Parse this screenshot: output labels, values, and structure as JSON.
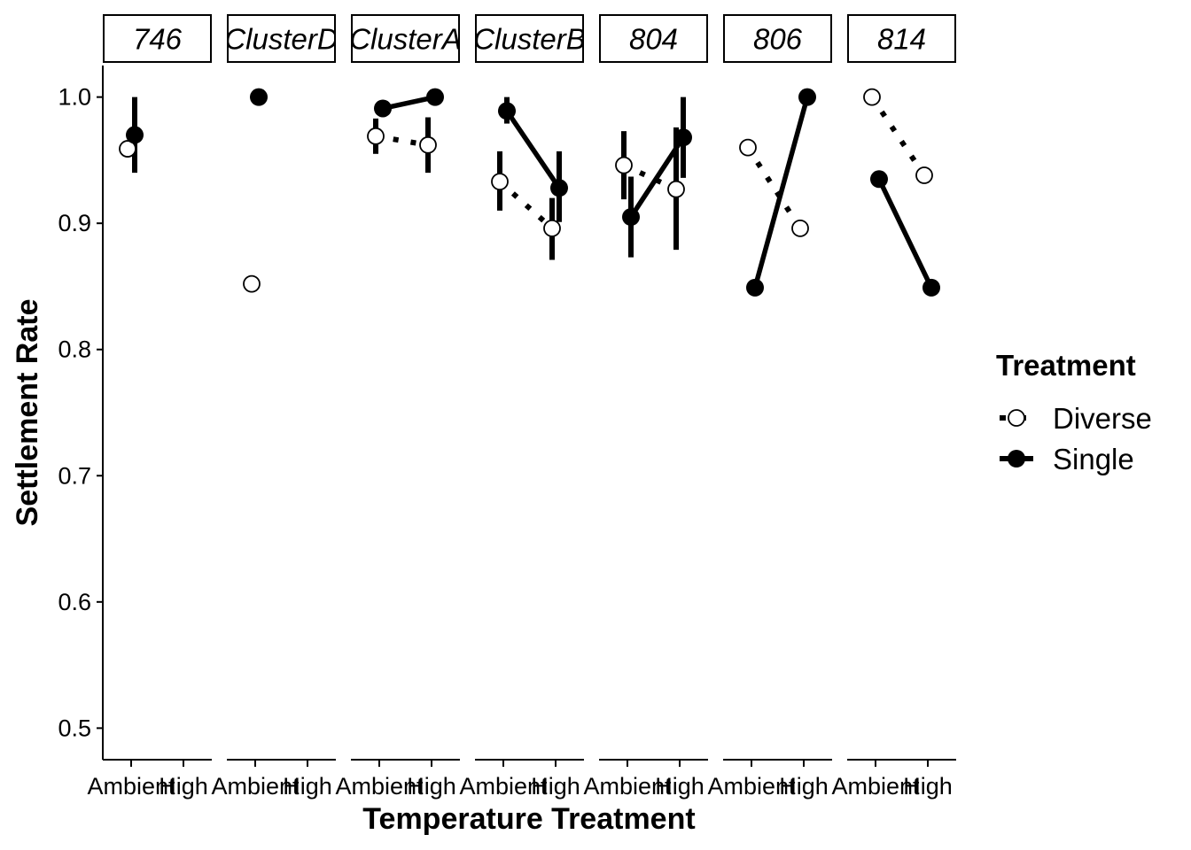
{
  "chart_data": {
    "type": "line",
    "xlabel": "Temperature Treatment",
    "ylabel": "Settlement Rate",
    "ylim": [
      0.475,
      1.025
    ],
    "yticks": [
      "0.5",
      "0.6",
      "0.7",
      "0.8",
      "0.9",
      "1.0"
    ],
    "categories": [
      "Ambient",
      "High"
    ],
    "legend": {
      "title": "Treatment",
      "position": "right"
    },
    "series_styles": {
      "Diverse": {
        "marker": "open-circle",
        "line": "dotted"
      },
      "Single": {
        "marker": "filled-circle",
        "line": "solid"
      }
    },
    "facets": [
      {
        "label": "746",
        "series": [
          {
            "name": "Diverse",
            "points": [
              {
                "x": "Ambient",
                "y": 0.959,
                "lo": 0.959,
                "hi": 0.959
              }
            ]
          },
          {
            "name": "Single",
            "points": [
              {
                "x": "Ambient",
                "y": 0.97,
                "lo": 0.94,
                "hi": 1.0
              }
            ]
          }
        ]
      },
      {
        "label": "ClusterD",
        "series": [
          {
            "name": "Diverse",
            "points": [
              {
                "x": "Ambient",
                "y": 0.852,
                "lo": 0.852,
                "hi": 0.852
              }
            ]
          },
          {
            "name": "Single",
            "points": [
              {
                "x": "Ambient",
                "y": 1.0,
                "lo": 1.0,
                "hi": 1.0
              }
            ]
          }
        ]
      },
      {
        "label": "ClusterA",
        "series": [
          {
            "name": "Diverse",
            "points": [
              {
                "x": "Ambient",
                "y": 0.969,
                "lo": 0.955,
                "hi": 0.983
              },
              {
                "x": "High",
                "y": 0.962,
                "lo": 0.94,
                "hi": 0.984
              }
            ]
          },
          {
            "name": "Single",
            "points": [
              {
                "x": "Ambient",
                "y": 0.991,
                "lo": 0.991,
                "hi": 0.991
              },
              {
                "x": "High",
                "y": 1.0,
                "lo": 1.0,
                "hi": 1.0
              }
            ]
          }
        ]
      },
      {
        "label": "ClusterB",
        "series": [
          {
            "name": "Diverse",
            "points": [
              {
                "x": "Ambient",
                "y": 0.933,
                "lo": 0.91,
                "hi": 0.957
              },
              {
                "x": "High",
                "y": 0.896,
                "lo": 0.871,
                "hi": 0.92
              }
            ]
          },
          {
            "name": "Single",
            "points": [
              {
                "x": "Ambient",
                "y": 0.989,
                "lo": 0.979,
                "hi": 1.0
              },
              {
                "x": "High",
                "y": 0.928,
                "lo": 0.901,
                "hi": 0.957
              }
            ]
          }
        ]
      },
      {
        "label": "804",
        "series": [
          {
            "name": "Diverse",
            "points": [
              {
                "x": "Ambient",
                "y": 0.946,
                "lo": 0.919,
                "hi": 0.973
              },
              {
                "x": "High",
                "y": 0.927,
                "lo": 0.879,
                "hi": 0.976
              }
            ]
          },
          {
            "name": "Single",
            "points": [
              {
                "x": "Ambient",
                "y": 0.905,
                "lo": 0.873,
                "hi": 0.937
              },
              {
                "x": "High",
                "y": 0.968,
                "lo": 0.936,
                "hi": 1.0
              }
            ]
          }
        ]
      },
      {
        "label": "806",
        "series": [
          {
            "name": "Diverse",
            "points": [
              {
                "x": "Ambient",
                "y": 0.96,
                "lo": 0.96,
                "hi": 0.96
              },
              {
                "x": "High",
                "y": 0.896,
                "lo": 0.896,
                "hi": 0.896
              }
            ]
          },
          {
            "name": "Single",
            "points": [
              {
                "x": "Ambient",
                "y": 0.849,
                "lo": 0.849,
                "hi": 0.849
              },
              {
                "x": "High",
                "y": 1.0,
                "lo": 1.0,
                "hi": 1.0
              }
            ]
          }
        ]
      },
      {
        "label": "814",
        "series": [
          {
            "name": "Diverse",
            "points": [
              {
                "x": "Ambient",
                "y": 1.0,
                "lo": 1.0,
                "hi": 1.0
              },
              {
                "x": "High",
                "y": 0.938,
                "lo": 0.938,
                "hi": 0.938
              }
            ]
          },
          {
            "name": "Single",
            "points": [
              {
                "x": "Ambient",
                "y": 0.935,
                "lo": 0.935,
                "hi": 0.935
              },
              {
                "x": "High",
                "y": 0.849,
                "lo": 0.849,
                "hi": 0.849
              }
            ]
          }
        ]
      }
    ]
  }
}
